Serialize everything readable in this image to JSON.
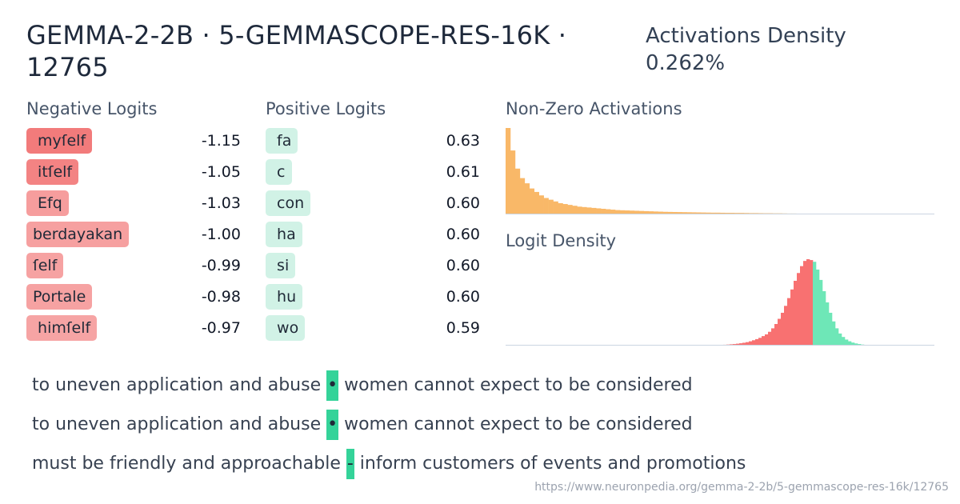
{
  "header": {
    "title": "GEMMA-2-2B · 5-GEMMASCOPE-RES-16K · 12765",
    "density_label": "Activations Density",
    "density_value": "0.262%"
  },
  "negative_logits": {
    "label": "Negative Logits",
    "items": [
      {
        "token": " myſelf",
        "value": "-1.15",
        "strength": 1.0
      },
      {
        "token": " itſelf",
        "value": "-1.05",
        "strength": 0.91
      },
      {
        "token": " Efq",
        "value": "-1.03",
        "strength": 0.55
      },
      {
        "token": "berdayakan",
        "value": "-1.00",
        "strength": 0.52
      },
      {
        "token": "ſelf",
        "value": "-0.99",
        "strength": 0.5
      },
      {
        "token": "Portale",
        "value": "-0.98",
        "strength": 0.5
      },
      {
        "token": " himſelf",
        "value": "-0.97",
        "strength": 0.48
      }
    ]
  },
  "positive_logits": {
    "label": "Positive Logits",
    "items": [
      {
        "token": " fa",
        "value": "0.63"
      },
      {
        "token": " c",
        "value": "0.61"
      },
      {
        "token": " con",
        "value": "0.60"
      },
      {
        "token": " ha",
        "value": "0.60"
      },
      {
        "token": " si",
        "value": "0.60"
      },
      {
        "token": " hu",
        "value": "0.60"
      },
      {
        "token": " wo",
        "value": "0.59"
      }
    ]
  },
  "chart_data": [
    {
      "type": "bar",
      "title": "Non-Zero Activations",
      "color": "#f9b868",
      "values": [
        100,
        74,
        53,
        42,
        36,
        30,
        26,
        22,
        19,
        17,
        15,
        13,
        12,
        11,
        10,
        9,
        8.5,
        8,
        7.5,
        7,
        6.5,
        6,
        5.5,
        5,
        4.8,
        4.6,
        4.4,
        4.2,
        4,
        3.8,
        3.6,
        3.4,
        3.2,
        3,
        2.9,
        2.8,
        2.7,
        2.6,
        2.5,
        2.4,
        2.3,
        2.2,
        2.1,
        2,
        2,
        1.9,
        1.8,
        1.8,
        1.7,
        1.7,
        1.6,
        1.5,
        1.5,
        1.4,
        1.3,
        1.3,
        1.2,
        1.2,
        1.1,
        1,
        1,
        0.9,
        0.9,
        0.8,
        0.8,
        0.7,
        0.7,
        0.6,
        0.6,
        0.6,
        0.5,
        0.5,
        0.4,
        0.4,
        0.8,
        0.4,
        0.3,
        0.3,
        0.3,
        0.2,
        0.2,
        0.2,
        0.1,
        0.1,
        0.1,
        0.1,
        0.1,
        0.1,
        0.1,
        0.1
      ]
    },
    {
      "type": "bar",
      "title": "Logit Density",
      "negative_color": "#f87171",
      "positive_color": "#6ee7b7",
      "negative_values": [
        0.2,
        0.2,
        0.3,
        0.3,
        0.4,
        0.5,
        0.6,
        0.8,
        1,
        1.2,
        1.5,
        1.8,
        2.2,
        2.7,
        3.3,
        4,
        5,
        6.2,
        7.5,
        9,
        11,
        13,
        16,
        20,
        25,
        31,
        38,
        46,
        55,
        65,
        75,
        84,
        92,
        98,
        100,
        99
      ],
      "positive_values": [
        97,
        88,
        76,
        63,
        50,
        38,
        28,
        20,
        14,
        10,
        7,
        5,
        3.5,
        2.5,
        1.8,
        1.2,
        0.8,
        0.5,
        0.3,
        0.2
      ]
    }
  ],
  "examples": [
    {
      "before": "to uneven application and abuse ",
      "highlight": "•",
      "after": " women cannot expect to be considered"
    },
    {
      "before": "to uneven application and abuse ",
      "highlight": "•",
      "after": " women cannot expect to be considered"
    },
    {
      "before": "must be friendly and approachable ",
      "highlight": "-",
      "after": " inform customers of events and promotions"
    }
  ],
  "footer": {
    "url": "https://www.neuronpedia.org/gemma-2-2b/5-gemmascope-res-16k/12765"
  }
}
